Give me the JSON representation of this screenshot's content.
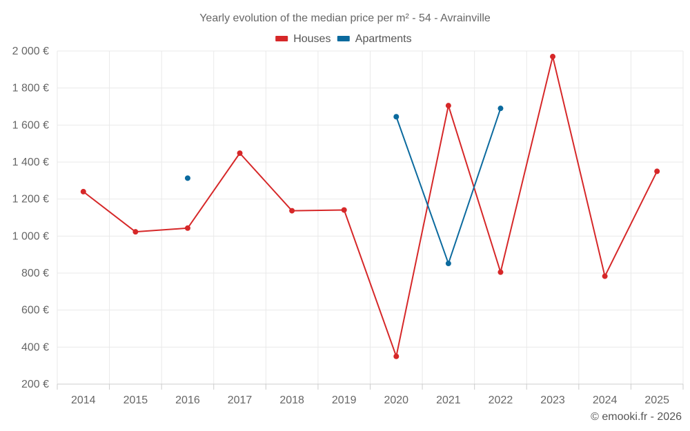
{
  "chart_data": {
    "type": "line",
    "title": "Yearly evolution of the median price per m² - 54 - Avrainville",
    "categories": [
      "2014",
      "2015",
      "2016",
      "2017",
      "2018",
      "2019",
      "2020",
      "2021",
      "2022",
      "2023",
      "2024",
      "2025"
    ],
    "series": [
      {
        "name": "Houses",
        "color": "#d62728",
        "values": [
          1240,
          1023,
          1043,
          1448,
          1137,
          1141,
          350,
          1705,
          805,
          1970,
          783,
          1350
        ]
      },
      {
        "name": "Apartments",
        "color": "#0b6a9e",
        "values": [
          null,
          null,
          1313,
          null,
          null,
          null,
          1645,
          852,
          1690,
          null,
          null,
          null
        ]
      }
    ],
    "ylim": [
      200,
      2000
    ],
    "yticks": [
      200,
      400,
      600,
      800,
      1000,
      1200,
      1400,
      1600,
      1800,
      2000
    ],
    "ytick_labels": [
      "200 €",
      "400 €",
      "600 €",
      "800 €",
      "1 000 €",
      "1 200 €",
      "1 400 €",
      "1 600 €",
      "1 800 €",
      "2 000 €"
    ],
    "xlabel": "",
    "ylabel": "",
    "legend_position": "top-center",
    "grid": true
  },
  "credit": "© emooki.fr - 2026"
}
